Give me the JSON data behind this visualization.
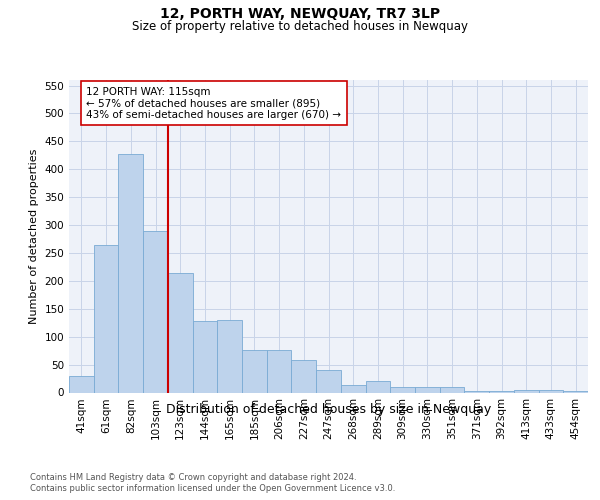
{
  "title": "12, PORTH WAY, NEWQUAY, TR7 3LP",
  "subtitle": "Size of property relative to detached houses in Newquay",
  "xlabel": "Distribution of detached houses by size in Newquay",
  "ylabel": "Number of detached properties",
  "footer_line1": "Contains HM Land Registry data © Crown copyright and database right 2024.",
  "footer_line2": "Contains public sector information licensed under the Open Government Licence v3.0.",
  "bar_labels": [
    "41sqm",
    "61sqm",
    "82sqm",
    "103sqm",
    "123sqm",
    "144sqm",
    "165sqm",
    "185sqm",
    "206sqm",
    "227sqm",
    "247sqm",
    "268sqm",
    "289sqm",
    "309sqm",
    "330sqm",
    "351sqm",
    "371sqm",
    "392sqm",
    "413sqm",
    "433sqm",
    "454sqm"
  ],
  "bar_values": [
    30,
    265,
    428,
    290,
    215,
    128,
    130,
    76,
    76,
    58,
    40,
    14,
    20,
    10,
    10,
    10,
    2,
    2,
    5,
    5,
    3
  ],
  "bar_color": "#bed3ec",
  "bar_edgecolor": "#7aaad4",
  "ylim": [
    0,
    560
  ],
  "yticks": [
    0,
    50,
    100,
    150,
    200,
    250,
    300,
    350,
    400,
    450,
    500,
    550
  ],
  "vline_x": 3.5,
  "vline_color": "#cc0000",
  "ann_line1": "12 PORTH WAY: 115sqm",
  "ann_line2": "← 57% of detached houses are smaller (895)",
  "ann_line3": "43% of semi-detached houses are larger (670) →",
  "grid_color": "#c8d4e8",
  "bg_color": "#eef2f9",
  "title_fontsize": 10,
  "subtitle_fontsize": 8.5,
  "ylabel_fontsize": 8,
  "xlabel_fontsize": 9,
  "tick_fontsize": 7.5,
  "ann_fontsize": 7.5,
  "footer_fontsize": 6
}
